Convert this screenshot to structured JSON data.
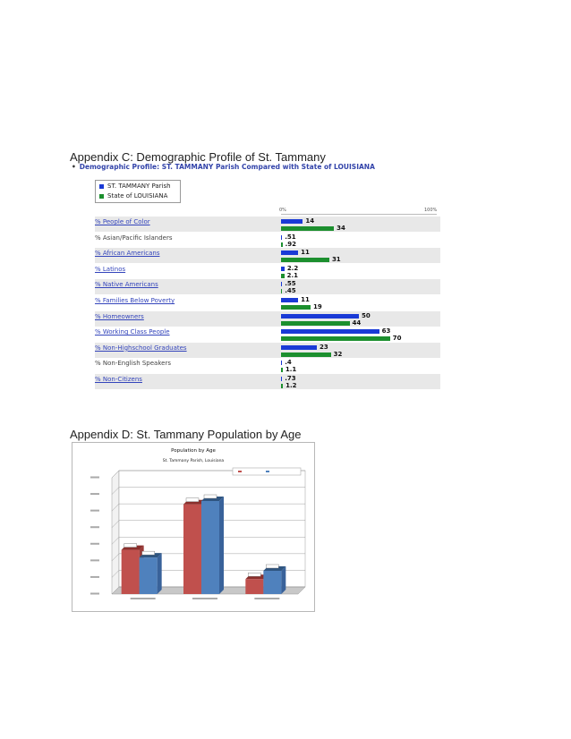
{
  "appendix_c": {
    "heading": "Appendix C: Demographic Profile of St. Tammany",
    "subtitle": "Demographic Profile: ST. TAMMANY Parish Compared with State of LOUISIANA",
    "bullet": "•",
    "legend": {
      "parish": "ST. TAMMANY Parish",
      "state": "State of LOUISIANA"
    },
    "axis": {
      "min_label": "0%",
      "max_label": "100%"
    },
    "colors": {
      "parish": "#1a3ad6",
      "state": "#1c8f2e"
    },
    "rows": [
      {
        "label": "% People of Color",
        "link": true,
        "parish": 14,
        "state": 34,
        "parish_label": "14",
        "state_label": "34"
      },
      {
        "label": "% Asian/Pacific Islanders",
        "link": false,
        "parish": 0.51,
        "state": 0.92,
        "parish_label": ".51",
        "state_label": ".92"
      },
      {
        "label": "% African Americans",
        "link": true,
        "parish": 11,
        "state": 31,
        "parish_label": "11",
        "state_label": "31"
      },
      {
        "label": "% Latinos",
        "link": true,
        "parish": 2.2,
        "state": 2.1,
        "parish_label": "2.2",
        "state_label": "2.1"
      },
      {
        "label": "% Native Americans",
        "link": true,
        "parish": 0.55,
        "state": 0.45,
        "parish_label": ".55",
        "state_label": ".45"
      },
      {
        "label": "% Families Below Poverty",
        "link": true,
        "parish": 11,
        "state": 19,
        "parish_label": "11",
        "state_label": "19"
      },
      {
        "label": "% Homeowners",
        "link": true,
        "parish": 50,
        "state": 44,
        "parish_label": "50",
        "state_label": "44"
      },
      {
        "label": "% Working Class People",
        "link": true,
        "parish": 63,
        "state": 70,
        "parish_label": "63",
        "state_label": "70"
      },
      {
        "label": "% Non-Highschool Graduates",
        "link": true,
        "parish": 23,
        "state": 32,
        "parish_label": "23",
        "state_label": "32"
      },
      {
        "label": "% Non-English Speakers",
        "link": false,
        "parish": 0.4,
        "state": 1.1,
        "parish_label": ".4",
        "state_label": "1.1"
      },
      {
        "label": "% Non-Citizens",
        "link": true,
        "parish": 0.73,
        "state": 1.2,
        "parish_label": ".73",
        "state_label": "1.2"
      }
    ]
  },
  "appendix_d": {
    "heading": "Appendix D: St. Tammany Population by Age"
  },
  "chart_data": {
    "type": "bar",
    "title": "Population by Age",
    "subtitle": "St. Tammany Parish, Louisiana",
    "categories": [
      "",
      "",
      ""
    ],
    "series": [
      {
        "name": "",
        "color": "#c0504d",
        "values": [
          26.6,
          54.0,
          9.0
        ]
      },
      {
        "name": "",
        "color": "#4f81bd",
        "values": [
          22.0,
          56.0,
          14.0
        ]
      }
    ],
    "ylim": [
      0,
      70
    ],
    "grid": true,
    "legend_position": "top-right"
  }
}
